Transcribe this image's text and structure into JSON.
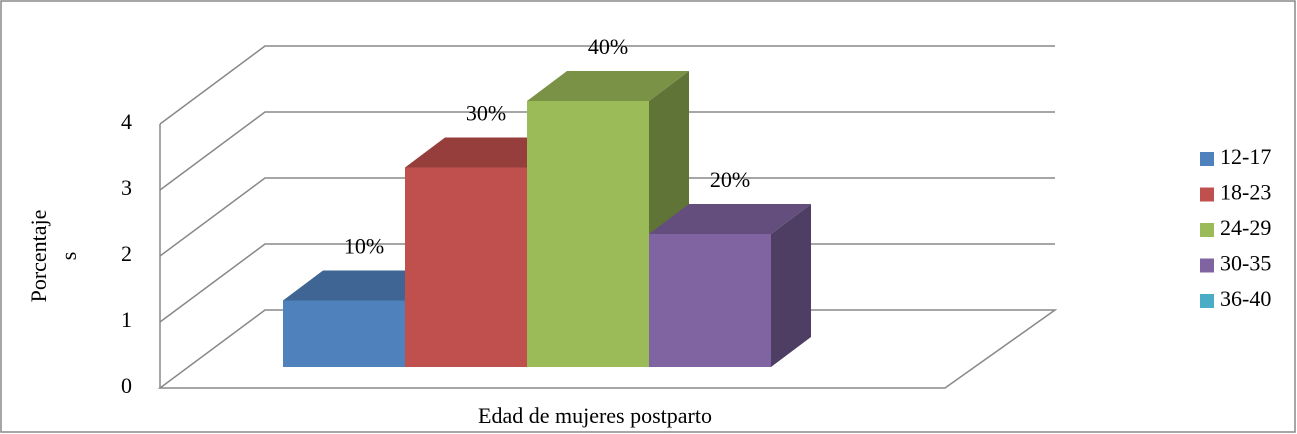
{
  "chart_data": {
    "type": "bar3d",
    "categories": [
      "Edad de mujeres postparto"
    ],
    "y_label": [
      "Porcentaje",
      "s"
    ],
    "series": [
      {
        "name": "12-17",
        "color": "#4f81bd",
        "values": [
          1
        ],
        "value_labels": [
          "10%"
        ]
      },
      {
        "name": "18-23",
        "color": "#c0504d",
        "values": [
          3
        ],
        "value_labels": [
          "30%"
        ]
      },
      {
        "name": "24-29",
        "color": "#9bbb59",
        "values": [
          4
        ],
        "value_labels": [
          "40%"
        ]
      },
      {
        "name": "30-35",
        "color": "#8064a2",
        "values": [
          2
        ],
        "value_labels": [
          "20%"
        ]
      },
      {
        "name": "36-40",
        "color": "#4bacc6",
        "values": [
          null
        ],
        "value_labels": [
          null
        ]
      }
    ],
    "ylim": [
      0,
      5
    ],
    "yticks": [
      0,
      1,
      2,
      3,
      4
    ],
    "grid": true,
    "legend": "right"
  }
}
